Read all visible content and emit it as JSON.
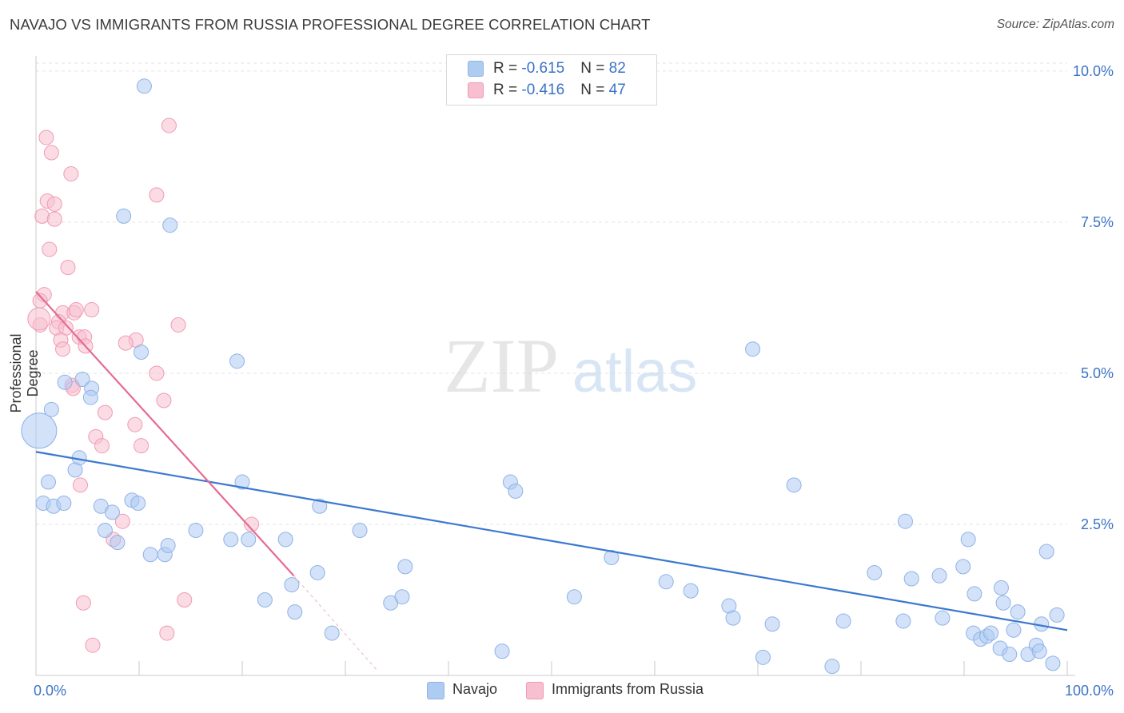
{
  "title": "NAVAJO VS IMMIGRANTS FROM RUSSIA PROFESSIONAL DEGREE CORRELATION CHART",
  "source": "Source: ZipAtlas.com",
  "watermark": {
    "zip": "ZIP",
    "atlas": "atlas"
  },
  "legend": {
    "navajo": {
      "r_label": "R = ",
      "r_value": "-0.615",
      "n_label": "N = ",
      "n_value": "82"
    },
    "russia": {
      "r_label": "R = ",
      "r_value": "-0.416",
      "n_label": "N = ",
      "n_value": "47"
    }
  },
  "bottom_legend": {
    "navajo": "Navajo",
    "russia": "Immigrants from Russia"
  },
  "colors": {
    "navajo_fill": "#aecbf2",
    "navajo_stroke": "#8fb3e6",
    "navajo_line": "#3b78d0",
    "russia_fill": "#f7bfd0",
    "russia_stroke": "#f09ab5",
    "russia_line": "#e56b92",
    "axis_text": "#3b73c6",
    "grid": "#e3e3e3"
  },
  "chart_data": {
    "type": "scatter",
    "title": "NAVAJO VS IMMIGRANTS FROM RUSSIA PROFESSIONAL DEGREE CORRELATION CHART",
    "xlabel": "",
    "ylabel": "Professional Degree",
    "xlim": [
      0,
      100
    ],
    "ylim": [
      0,
      10.25
    ],
    "x_tick_labels": [
      "0.0%",
      "100.0%"
    ],
    "y_ticks": [
      2.5,
      5.0,
      7.5,
      10.0
    ],
    "y_tick_labels": [
      "2.5%",
      "5.0%",
      "7.5%",
      "10.0%"
    ],
    "grid": true,
    "legend_position": "top-center",
    "series": [
      {
        "name": "Navajo",
        "points": [
          [
            10.5,
            9.75
          ],
          [
            8.5,
            7.6
          ],
          [
            13,
            7.45
          ],
          [
            10.2,
            5.35
          ],
          [
            19.5,
            5.2
          ],
          [
            69.5,
            5.4
          ],
          [
            1.5,
            4.4
          ],
          [
            2.8,
            4.85
          ],
          [
            4.5,
            4.9
          ],
          [
            5.4,
            4.75
          ],
          [
            5.3,
            4.6
          ],
          [
            4.2,
            3.6
          ],
          [
            3.8,
            3.4
          ],
          [
            1.2,
            3.2
          ],
          [
            20,
            3.2
          ],
          [
            46,
            3.2
          ],
          [
            46.5,
            3.05
          ],
          [
            73.5,
            3.15
          ],
          [
            0.7,
            2.85
          ],
          [
            1.7,
            2.8
          ],
          [
            2.7,
            2.85
          ],
          [
            6.3,
            2.8
          ],
          [
            7.4,
            2.7
          ],
          [
            9.3,
            2.9
          ],
          [
            9.9,
            2.85
          ],
          [
            27.5,
            2.8
          ],
          [
            6.7,
            2.4
          ],
          [
            7.9,
            2.2
          ],
          [
            15.5,
            2.4
          ],
          [
            18.9,
            2.25
          ],
          [
            20.6,
            2.25
          ],
          [
            24.2,
            2.25
          ],
          [
            31.4,
            2.4
          ],
          [
            11.1,
            2.0
          ],
          [
            12.5,
            2.0
          ],
          [
            12.8,
            2.15
          ],
          [
            55.8,
            1.95
          ],
          [
            84.3,
            2.55
          ],
          [
            90.4,
            2.25
          ],
          [
            98,
            2.05
          ],
          [
            27.3,
            1.7
          ],
          [
            35.8,
            1.8
          ],
          [
            61.1,
            1.55
          ],
          [
            81.3,
            1.7
          ],
          [
            84.9,
            1.6
          ],
          [
            87.6,
            1.65
          ],
          [
            89.9,
            1.8
          ],
          [
            93.6,
            1.45
          ],
          [
            22.2,
            1.25
          ],
          [
            24.8,
            1.5
          ],
          [
            34.4,
            1.2
          ],
          [
            35.5,
            1.3
          ],
          [
            52.2,
            1.3
          ],
          [
            63.5,
            1.4
          ],
          [
            67.2,
            1.15
          ],
          [
            91,
            1.35
          ],
          [
            93.8,
            1.2
          ],
          [
            25.1,
            1.05
          ],
          [
            67.6,
            0.95
          ],
          [
            71.4,
            0.85
          ],
          [
            78.3,
            0.9
          ],
          [
            84.1,
            0.9
          ],
          [
            87.9,
            0.95
          ],
          [
            95.2,
            1.05
          ],
          [
            97.5,
            0.85
          ],
          [
            99,
            1.0
          ],
          [
            28.7,
            0.7
          ],
          [
            90.9,
            0.7
          ],
          [
            91.6,
            0.6
          ],
          [
            92.2,
            0.65
          ],
          [
            92.6,
            0.7
          ],
          [
            94.8,
            0.75
          ],
          [
            45.2,
            0.4
          ],
          [
            70.5,
            0.3
          ],
          [
            77.2,
            0.15
          ],
          [
            93.5,
            0.45
          ],
          [
            94.4,
            0.35
          ],
          [
            96.2,
            0.35
          ],
          [
            97,
            0.5
          ],
          [
            97.3,
            0.4
          ],
          [
            98.6,
            0.2
          ],
          [
            0.3,
            4.05
          ]
        ],
        "radii": [
          9,
          9,
          9,
          9,
          9,
          9,
          9,
          9,
          9,
          9,
          9,
          9,
          9,
          9,
          9,
          9,
          9,
          9,
          9,
          9,
          9,
          9,
          9,
          9,
          9,
          9,
          9,
          9,
          9,
          9,
          9,
          9,
          9,
          9,
          9,
          9,
          9,
          9,
          9,
          9,
          9,
          9,
          9,
          9,
          9,
          9,
          9,
          9,
          9,
          9,
          9,
          9,
          9,
          9,
          9,
          9,
          9,
          9,
          9,
          9,
          9,
          9,
          9,
          9,
          9,
          9,
          9,
          9,
          9,
          9,
          9,
          9,
          9,
          9,
          9,
          9,
          9,
          9,
          9,
          9,
          9,
          22
        ]
      },
      {
        "name": "Immigrants from Russia",
        "points": [
          [
            12.9,
            9.1
          ],
          [
            1.0,
            8.9
          ],
          [
            1.5,
            8.65
          ],
          [
            3.4,
            8.3
          ],
          [
            11.7,
            7.95
          ],
          [
            1.1,
            7.85
          ],
          [
            1.8,
            7.8
          ],
          [
            0.6,
            7.6
          ],
          [
            1.8,
            7.55
          ],
          [
            1.3,
            7.05
          ],
          [
            3.1,
            6.75
          ],
          [
            0.8,
            6.3
          ],
          [
            0.4,
            6.2
          ],
          [
            2.6,
            6.0
          ],
          [
            3.7,
            6.0
          ],
          [
            3.9,
            6.05
          ],
          [
            5.4,
            6.05
          ],
          [
            2.2,
            5.85
          ],
          [
            0.4,
            5.8
          ],
          [
            2.0,
            5.75
          ],
          [
            2.9,
            5.75
          ],
          [
            13.8,
            5.8
          ],
          [
            2.4,
            5.55
          ],
          [
            4.2,
            5.6
          ],
          [
            4.7,
            5.6
          ],
          [
            9.7,
            5.55
          ],
          [
            8.7,
            5.5
          ],
          [
            4.8,
            5.45
          ],
          [
            2.6,
            5.4
          ],
          [
            11.7,
            5.0
          ],
          [
            3.5,
            4.8
          ],
          [
            3.6,
            4.75
          ],
          [
            12.4,
            4.55
          ],
          [
            6.7,
            4.35
          ],
          [
            9.6,
            4.15
          ],
          [
            5.8,
            3.95
          ],
          [
            6.4,
            3.8
          ],
          [
            10.2,
            3.8
          ],
          [
            4.3,
            3.15
          ],
          [
            8.4,
            2.55
          ],
          [
            20.9,
            2.5
          ],
          [
            7.5,
            2.25
          ],
          [
            4.6,
            1.2
          ],
          [
            14.4,
            1.25
          ],
          [
            12.7,
            0.7
          ],
          [
            5.5,
            0.5
          ],
          [
            0.3,
            5.9
          ]
        ],
        "radii": [
          9,
          9,
          9,
          9,
          9,
          9,
          9,
          9,
          9,
          9,
          9,
          9,
          9,
          9,
          9,
          9,
          9,
          9,
          9,
          9,
          9,
          9,
          9,
          9,
          9,
          9,
          9,
          9,
          9,
          9,
          9,
          9,
          9,
          9,
          9,
          9,
          9,
          9,
          9,
          9,
          9,
          9,
          9,
          9,
          9,
          9,
          14
        ]
      }
    ],
    "trendlines": [
      {
        "series": "Navajo",
        "x": [
          0,
          100
        ],
        "y": [
          3.7,
          0.75
        ]
      },
      {
        "series": "Immigrants from Russia",
        "x": [
          0,
          25.0
        ],
        "y": [
          6.35,
          1.65
        ]
      },
      {
        "series": "Immigrants from Russia",
        "style": "dashed",
        "x": [
          25.0,
          33.0
        ],
        "y": [
          1.65,
          0.1
        ]
      }
    ]
  }
}
